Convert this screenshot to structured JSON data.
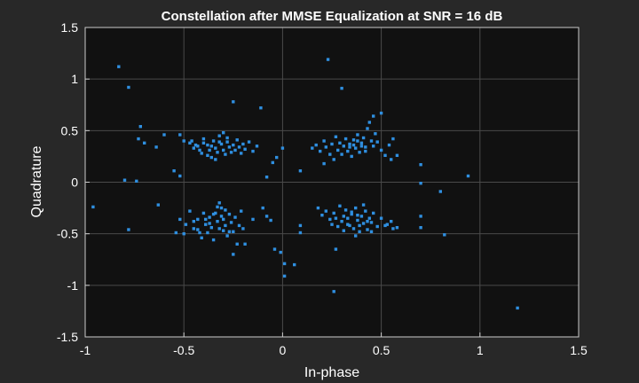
{
  "chart_data": {
    "type": "scatter",
    "title": "Constellation after MMSE Equalization at SNR = 16 dB",
    "xlabel": "In-phase",
    "ylabel": "Quadrature",
    "xlim": [
      -1,
      1.5
    ],
    "ylim": [
      -1.5,
      1.5
    ],
    "xticks": [
      "-1",
      "-0.5",
      "0",
      "0.5",
      "1",
      "1.5"
    ],
    "yticks": [
      "-1.5",
      "-1",
      "-0.5",
      "0",
      "0.5",
      "1",
      "1.5"
    ],
    "grid": true,
    "colors": {
      "background": "#282828",
      "plot_area": "#111111",
      "grid": "#4a4a4a",
      "marker": "#2f8fe0",
      "text": "#ffffff"
    },
    "points": [
      [
        -0.83,
        1.12
      ],
      [
        -0.78,
        0.92
      ],
      [
        -0.96,
        -0.24
      ],
      [
        -0.8,
        0.02
      ],
      [
        -0.74,
        0.01
      ],
      [
        -0.78,
        -0.46
      ],
      [
        -0.72,
        0.54
      ],
      [
        -0.73,
        0.42
      ],
      [
        -0.7,
        0.38
      ],
      [
        -0.64,
        0.34
      ],
      [
        -0.6,
        0.46
      ],
      [
        -0.63,
        -0.22
      ],
      [
        -0.55,
        0.11
      ],
      [
        -0.52,
        0.06
      ],
      [
        -0.54,
        -0.49
      ],
      [
        -0.5,
        -0.5
      ],
      [
        -0.25,
        0.78
      ],
      [
        -0.11,
        0.72
      ],
      [
        -0.08,
        0.05
      ],
      [
        -0.1,
        -0.25
      ],
      [
        -0.08,
        -0.33
      ],
      [
        -0.06,
        -0.37
      ],
      [
        -0.05,
        0.19
      ],
      [
        -0.03,
        0.24
      ],
      [
        0.0,
        0.33
      ],
      [
        -0.04,
        -0.65
      ],
      [
        -0.01,
        -0.68
      ],
      [
        0.01,
        -0.79
      ],
      [
        0.01,
        -0.91
      ],
      [
        0.06,
        -0.8
      ],
      [
        0.09,
        -0.42
      ],
      [
        0.09,
        -0.49
      ],
      [
        0.09,
        0.11
      ],
      [
        0.21,
        0.18
      ],
      [
        0.23,
        1.19
      ],
      [
        0.3,
        0.91
      ],
      [
        0.27,
        -0.65
      ],
      [
        0.26,
        -1.06
      ],
      [
        0.46,
        0.64
      ],
      [
        0.5,
        0.67
      ],
      [
        0.52,
        -0.42
      ],
      [
        0.55,
        -0.38
      ],
      [
        0.58,
        -0.44
      ],
      [
        0.58,
        0.26
      ],
      [
        0.7,
        0.17
      ],
      [
        0.7,
        -0.01
      ],
      [
        0.7,
        -0.33
      ],
      [
        0.7,
        -0.44
      ],
      [
        0.8,
        -0.09
      ],
      [
        0.82,
        -0.51
      ],
      [
        0.94,
        0.06
      ],
      [
        1.19,
        -1.22
      ],
      [
        -0.52,
        0.46
      ],
      [
        -0.5,
        0.4
      ],
      [
        -0.47,
        0.38
      ],
      [
        -0.45,
        0.33
      ],
      [
        -0.43,
        0.35
      ],
      [
        -0.41,
        0.28
      ],
      [
        -0.4,
        0.42
      ],
      [
        -0.38,
        0.36
      ],
      [
        -0.37,
        0.31
      ],
      [
        -0.36,
        0.24
      ],
      [
        -0.35,
        0.4
      ],
      [
        -0.34,
        0.33
      ],
      [
        -0.33,
        0.29
      ],
      [
        -0.32,
        0.45
      ],
      [
        -0.31,
        0.37
      ],
      [
        -0.3,
        0.31
      ],
      [
        -0.29,
        0.27
      ],
      [
        -0.28,
        0.39
      ],
      [
        -0.27,
        0.34
      ],
      [
        -0.26,
        0.29
      ],
      [
        -0.25,
        0.36
      ],
      [
        -0.24,
        0.31
      ],
      [
        -0.23,
        0.41
      ],
      [
        -0.22,
        0.34
      ],
      [
        -0.21,
        0.28
      ],
      [
        -0.2,
        0.37
      ],
      [
        -0.19,
        0.32
      ],
      [
        -0.17,
        0.39
      ],
      [
        -0.15,
        0.3
      ],
      [
        -0.13,
        0.35
      ],
      [
        -0.4,
        0.38
      ],
      [
        -0.38,
        0.26
      ],
      [
        -0.36,
        0.35
      ],
      [
        -0.34,
        0.22
      ],
      [
        -0.32,
        0.39
      ],
      [
        -0.3,
        0.48
      ],
      [
        -0.28,
        0.43
      ],
      [
        -0.46,
        0.4
      ],
      [
        -0.42,
        0.31
      ],
      [
        -0.44,
        0.36
      ],
      [
        -0.52,
        -0.36
      ],
      [
        -0.49,
        -0.41
      ],
      [
        -0.47,
        -0.28
      ],
      [
        -0.45,
        -0.45
      ],
      [
        -0.43,
        -0.36
      ],
      [
        -0.41,
        -0.54
      ],
      [
        -0.4,
        -0.3
      ],
      [
        -0.39,
        -0.41
      ],
      [
        -0.38,
        -0.49
      ],
      [
        -0.37,
        -0.34
      ],
      [
        -0.36,
        -0.44
      ],
      [
        -0.35,
        -0.56
      ],
      [
        -0.34,
        -0.3
      ],
      [
        -0.33,
        -0.38
      ],
      [
        -0.32,
        -0.45
      ],
      [
        -0.31,
        -0.25
      ],
      [
        -0.3,
        -0.36
      ],
      [
        -0.29,
        -0.42
      ],
      [
        -0.28,
        -0.52
      ],
      [
        -0.27,
        -0.31
      ],
      [
        -0.26,
        -0.39
      ],
      [
        -0.25,
        -0.48
      ],
      [
        -0.24,
        -0.34
      ],
      [
        -0.23,
        -0.6
      ],
      [
        -0.22,
        -0.42
      ],
      [
        -0.21,
        -0.28
      ],
      [
        -0.2,
        -0.45
      ],
      [
        -0.33,
        -0.24
      ],
      [
        -0.35,
        -0.31
      ],
      [
        -0.31,
        -0.33
      ],
      [
        -0.29,
        -0.27
      ],
      [
        -0.37,
        -0.4
      ],
      [
        -0.39,
        -0.36
      ],
      [
        -0.43,
        -0.46
      ],
      [
        -0.45,
        -0.38
      ],
      [
        -0.27,
        -0.48
      ],
      [
        -0.25,
        -0.7
      ],
      [
        -0.19,
        -0.6
      ],
      [
        -0.15,
        -0.36
      ],
      [
        -0.32,
        -0.2
      ],
      [
        -0.42,
        -0.49
      ],
      [
        -0.3,
        -0.47
      ],
      [
        0.15,
        0.33
      ],
      [
        0.17,
        0.36
      ],
      [
        0.19,
        0.3
      ],
      [
        0.21,
        0.4
      ],
      [
        0.22,
        0.34
      ],
      [
        0.24,
        0.27
      ],
      [
        0.25,
        0.37
      ],
      [
        0.26,
        0.22
      ],
      [
        0.27,
        0.44
      ],
      [
        0.28,
        0.31
      ],
      [
        0.29,
        0.38
      ],
      [
        0.3,
        0.27
      ],
      [
        0.31,
        0.35
      ],
      [
        0.32,
        0.42
      ],
      [
        0.33,
        0.3
      ],
      [
        0.34,
        0.37
      ],
      [
        0.35,
        0.25
      ],
      [
        0.36,
        0.41
      ],
      [
        0.37,
        0.33
      ],
      [
        0.38,
        0.46
      ],
      [
        0.39,
        0.29
      ],
      [
        0.4,
        0.38
      ],
      [
        0.41,
        0.43
      ],
      [
        0.42,
        0.34
      ],
      [
        0.43,
        0.52
      ],
      [
        0.44,
        0.58
      ],
      [
        0.45,
        0.4
      ],
      [
        0.46,
        0.35
      ],
      [
        0.47,
        0.47
      ],
      [
        0.48,
        0.39
      ],
      [
        0.5,
        0.31
      ],
      [
        0.52,
        0.26
      ],
      [
        0.54,
        0.36
      ],
      [
        0.55,
        0.22
      ],
      [
        0.56,
        0.42
      ],
      [
        0.34,
        0.34
      ],
      [
        0.36,
        0.36
      ],
      [
        0.38,
        0.4
      ],
      [
        0.4,
        0.35
      ],
      [
        0.42,
        0.3
      ],
      [
        0.18,
        -0.25
      ],
      [
        0.2,
        -0.32
      ],
      [
        0.22,
        -0.28
      ],
      [
        0.24,
        -0.36
      ],
      [
        0.26,
        -0.3
      ],
      [
        0.28,
        -0.43
      ],
      [
        0.29,
        -0.23
      ],
      [
        0.3,
        -0.38
      ],
      [
        0.31,
        -0.47
      ],
      [
        0.32,
        -0.27
      ],
      [
        0.33,
        -0.35
      ],
      [
        0.34,
        -0.42
      ],
      [
        0.35,
        -0.31
      ],
      [
        0.36,
        -0.45
      ],
      [
        0.37,
        -0.25
      ],
      [
        0.38,
        -0.37
      ],
      [
        0.39,
        -0.48
      ],
      [
        0.4,
        -0.33
      ],
      [
        0.41,
        -0.4
      ],
      [
        0.42,
        -0.28
      ],
      [
        0.43,
        -0.46
      ],
      [
        0.44,
        -0.35
      ],
      [
        0.45,
        -0.39
      ],
      [
        0.46,
        -0.3
      ],
      [
        0.48,
        -0.43
      ],
      [
        0.5,
        -0.35
      ],
      [
        0.53,
        -0.41
      ],
      [
        0.56,
        -0.45
      ],
      [
        0.37,
        -0.52
      ],
      [
        0.41,
        -0.22
      ],
      [
        0.35,
        -0.29
      ],
      [
        0.33,
        -0.41
      ],
      [
        0.31,
        -0.33
      ],
      [
        0.39,
        -0.42
      ],
      [
        0.27,
        -0.35
      ],
      [
        0.25,
        -0.41
      ],
      [
        0.45,
        -0.48
      ],
      [
        0.43,
        -0.38
      ],
      [
        0.38,
        -0.32
      ]
    ]
  }
}
